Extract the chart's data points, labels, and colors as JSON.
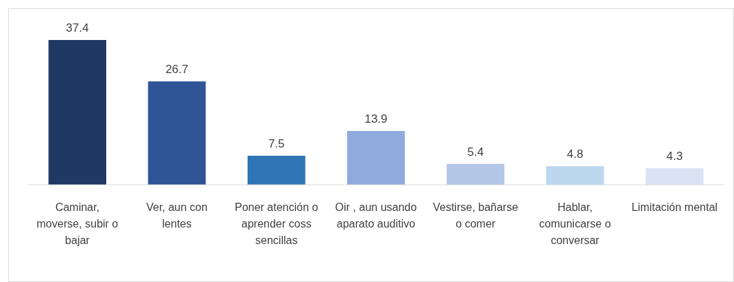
{
  "chart_data": {
    "type": "bar",
    "categories": [
      "Caminar, moverse, subir o bajar",
      "Ver, aun con lentes",
      "Poner atención o aprender coss sencillas",
      "Oir , aun usando aparato auditivo",
      "Vestirse, bañarse o comer",
      "Hablar, comunicarse o conversar",
      "Limitación mental"
    ],
    "values": [
      37.4,
      26.7,
      7.5,
      13.9,
      5.4,
      4.8,
      4.3
    ],
    "colors": [
      "#203864",
      "#2f5597",
      "#2e75b6",
      "#8faadc",
      "#b4c7e7",
      "#bdd7ee",
      "#dae3f3"
    ],
    "data_labels": true
  }
}
